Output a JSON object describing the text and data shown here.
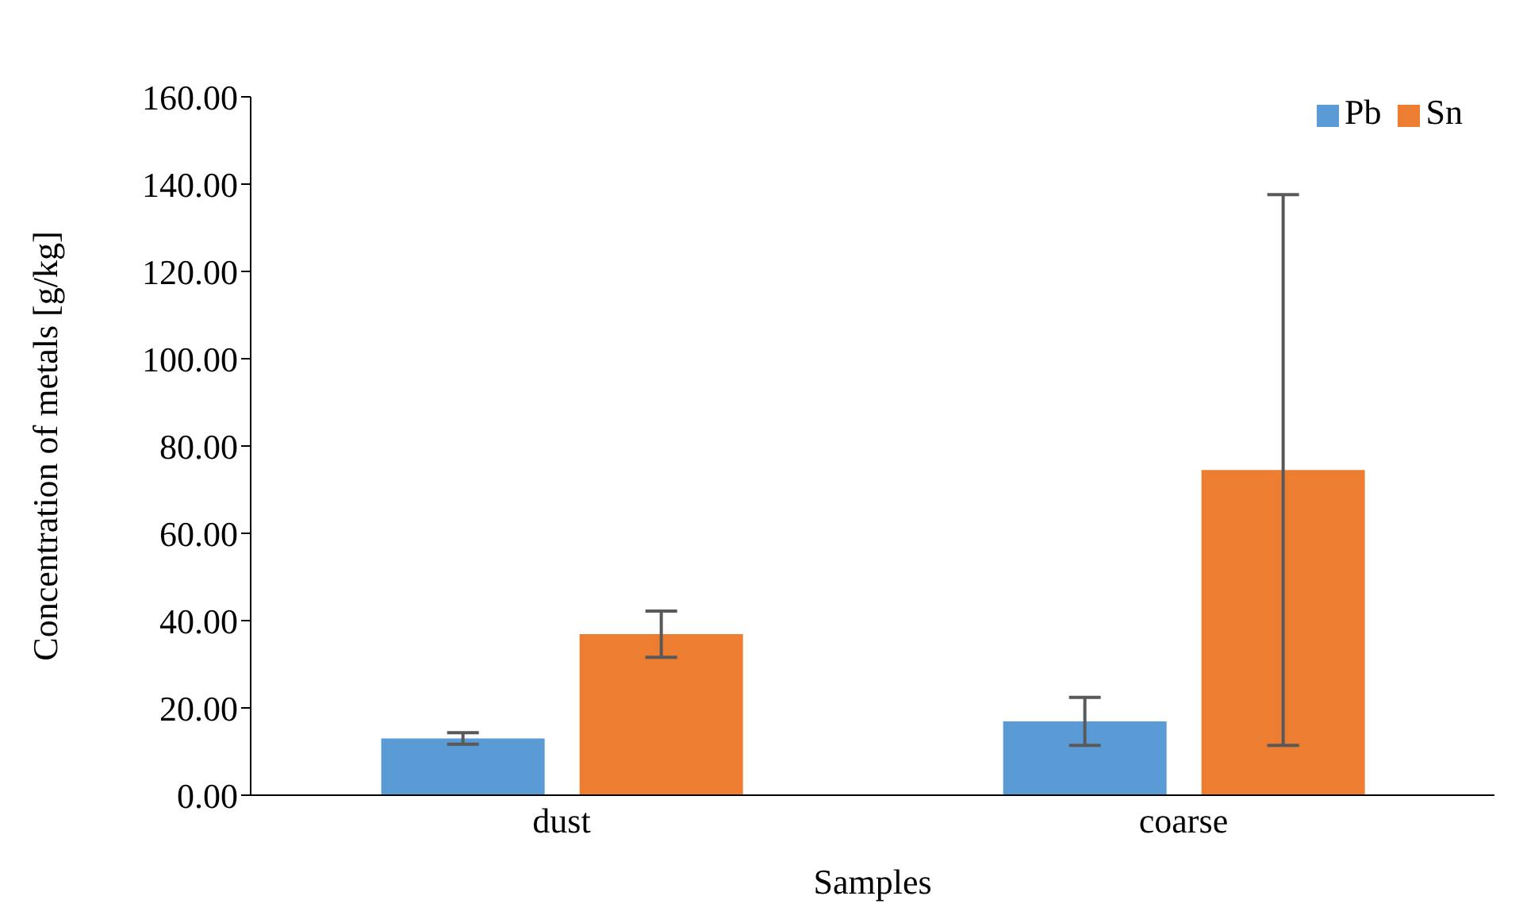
{
  "chart_data": {
    "type": "bar",
    "xlabel": "Samples",
    "ylabel": "Concentration of metals [g/kg]",
    "categories": [
      "dust",
      "coarse"
    ],
    "series": [
      {
        "name": "Pb",
        "color": "#5b9bd5",
        "values": [
          13.0,
          16.9
        ],
        "errors": [
          1.3,
          5.5
        ]
      },
      {
        "name": "Sn",
        "color": "#ed7d31",
        "values": [
          36.9,
          74.5
        ],
        "errors": [
          5.3,
          63.1
        ]
      }
    ],
    "ylim": [
      0,
      160
    ],
    "yticks": [
      {
        "value": 0,
        "label": "0.00"
      },
      {
        "value": 20,
        "label": "20.00"
      },
      {
        "value": 40,
        "label": "40.00"
      },
      {
        "value": 60,
        "label": "60.00"
      },
      {
        "value": 80,
        "label": "80.00"
      },
      {
        "value": 100,
        "label": "100.00"
      },
      {
        "value": 120,
        "label": "120.00"
      },
      {
        "value": 140,
        "label": "140.00"
      },
      {
        "value": 160,
        "label": "160.00"
      }
    ],
    "grid": false,
    "legend": "top right"
  }
}
